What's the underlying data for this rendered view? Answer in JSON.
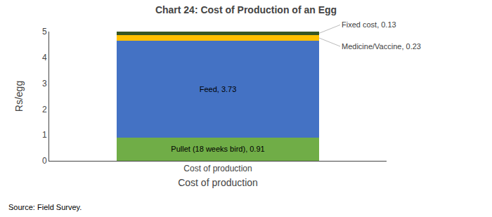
{
  "chart_data": {
    "type": "bar",
    "title": "Chart 24: Cost of Production of an Egg",
    "xlabel": "Cost of production",
    "ylabel": "Rs/egg",
    "categories": [
      "Cost of production"
    ],
    "stacked": true,
    "data_labels": true,
    "grid": false,
    "series": [
      {
        "color": "#70ad47",
        "values": [
          0.91
        ],
        "value_labels": [
          "Pullet (18 weeks bird), 0.91"
        ]
      },
      {
        "color": "#4472c4",
        "values": [
          3.73
        ],
        "value_labels": [
          "Feed, 3.73"
        ]
      },
      {
        "color": "#ffc000",
        "values": [
          0.23
        ],
        "value_labels": [
          "Medicine/Vaccine, 0.23"
        ]
      },
      {
        "color": "#375623",
        "values": [
          0.13
        ],
        "value_labels": [
          "Fixed cost, 0.13"
        ]
      }
    ],
    "ylim": [
      0,
      5
    ],
    "yticks": [
      0,
      1,
      2,
      3,
      4,
      5
    ],
    "annotations": [
      "Source: Field Survey."
    ]
  }
}
